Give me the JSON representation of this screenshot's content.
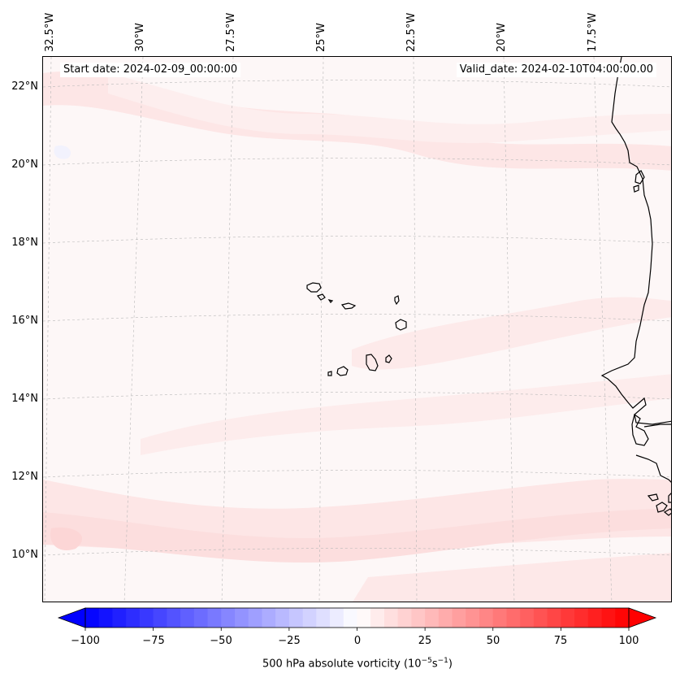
{
  "map": {
    "start_date": "Start date: 2024-02-09_00:00:00",
    "valid_date": "Valid_date: 2024-02-10T04:00:00.00",
    "lon_labels": [
      "32.5°W",
      "30°W",
      "27.5°W",
      "25°W",
      "22.5°W",
      "20°W",
      "17.5°W"
    ],
    "lat_labels": [
      "22°N",
      "20°N",
      "18°N",
      "16°N",
      "14°N",
      "12°N",
      "10°N"
    ],
    "islands": [
      "Santo Antão",
      "São Vicente",
      "Santa Luzia",
      "São Nicolau",
      "Sal",
      "Boa Vista",
      "Maio",
      "Santiago",
      "Fogo",
      "Brava"
    ]
  },
  "colorbar": {
    "ticks": [
      "−100",
      "−75",
      "−50",
      "−25",
      "0",
      "25",
      "50",
      "75",
      "100"
    ],
    "label": "500 hPa absolute vorticity (10",
    "label_unit_exp1": "−5",
    "label_unit_mid": "s",
    "label_unit_exp2": "−1",
    "label_close": ")",
    "min": -100,
    "max": 100,
    "levels": 40
  },
  "colors": {
    "negative": "#0000ff",
    "positive": "#ff0000",
    "background": "#fdf7f7"
  }
}
